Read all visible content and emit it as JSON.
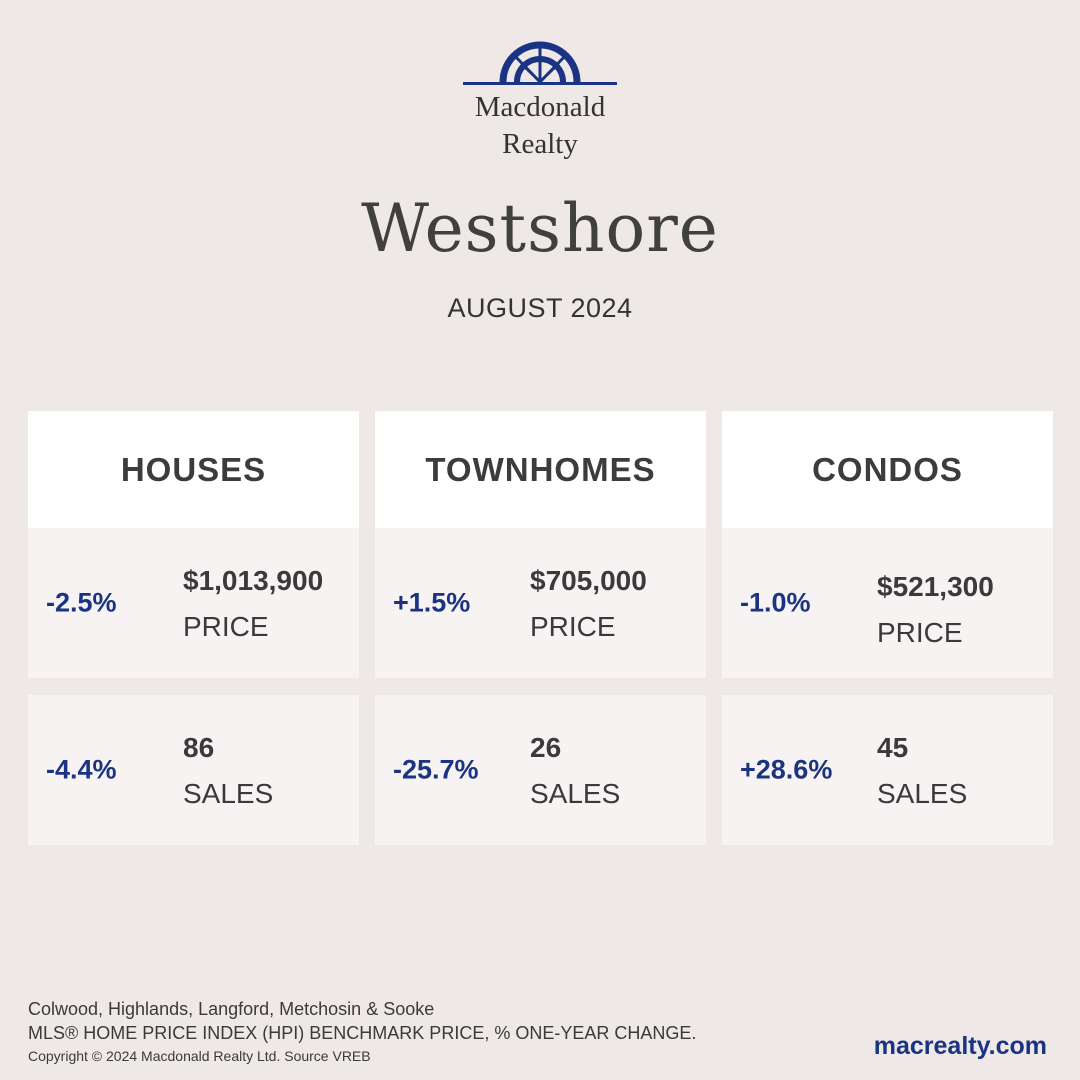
{
  "brand": {
    "line1": "Macdonald",
    "line2": "Realty",
    "accent": "#1B3383"
  },
  "title": "Westshore",
  "subtitle": "AUGUST 2024",
  "columns": [
    {
      "name": "HOUSES",
      "price": {
        "change": "-2.5%",
        "value": "$1,013,900",
        "label": "PRICE"
      },
      "sales": {
        "change": "-4.4%",
        "value": "86",
        "label": "SALES"
      }
    },
    {
      "name": "TOWNHOMES",
      "price": {
        "change": "+1.5%",
        "value": "$705,000",
        "label": "PRICE"
      },
      "sales": {
        "change": "-25.7%",
        "value": "26",
        "label": "SALES"
      }
    },
    {
      "name": "CONDOS",
      "price": {
        "change": "-1.0%",
        "value": "$521,300",
        "label": "PRICE"
      },
      "sales": {
        "change": "+28.6%",
        "value": "45",
        "label": "SALES"
      }
    }
  ],
  "footer": {
    "areas": "Colwood, Highlands, Langford, Metchosin & Sooke",
    "note": "MLS® HOME PRICE INDEX (HPI) BENCHMARK PRICE, % ONE-YEAR CHANGE.",
    "copyright": "Copyright © 2024 Macdonald Realty Ltd. Source VREB",
    "website": "macrealty.com"
  }
}
